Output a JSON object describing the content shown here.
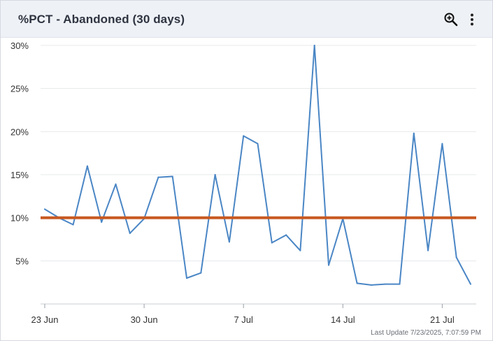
{
  "widget": {
    "title": "%PCT - Abandoned (30 days)",
    "zoom_icon": "zoom-in-icon",
    "menu_icon": "more-vertical-icon",
    "last_update": "Last Update 7/23/2025, 7:07:59 PM"
  },
  "chart_data": {
    "type": "line",
    "title": "%PCT - Abandoned (30 days)",
    "xlabel": "",
    "ylabel": "",
    "x_tick_labels": [
      "23 Jun",
      "30 Jun",
      "7 Jul",
      "14 Jul",
      "21 Jul"
    ],
    "x_ticks": [
      0,
      7,
      14,
      21,
      28
    ],
    "y_tick_labels": [
      "5%",
      "10%",
      "15%",
      "20%",
      "25%",
      "30%"
    ],
    "y_ticks": [
      5,
      10,
      15,
      20,
      25,
      30
    ],
    "ylim": [
      0,
      30
    ],
    "xlim": [
      0,
      30.5
    ],
    "grid": true,
    "legend": "none",
    "series": [
      {
        "color": "#4a86c5",
        "x": [
          0,
          1,
          2,
          3,
          4,
          5,
          6,
          7,
          8,
          9,
          10,
          11,
          12,
          13,
          14,
          15,
          16,
          17,
          18,
          19,
          20,
          21,
          22,
          23,
          24,
          25,
          26,
          27,
          28,
          29,
          30
        ],
        "values": [
          11.0,
          10.0,
          9.2,
          16.0,
          9.5,
          13.9,
          8.2,
          9.9,
          14.7,
          14.8,
          3.0,
          3.6,
          15.0,
          7.2,
          19.5,
          18.6,
          7.1,
          8.0,
          6.2,
          30.0,
          4.5,
          9.9,
          2.4,
          2.2,
          2.3,
          2.3,
          19.8,
          6.2,
          18.6,
          5.4,
          2.3
        ]
      }
    ],
    "reference_line": {
      "value": 10,
      "color": "#c8581f"
    }
  }
}
